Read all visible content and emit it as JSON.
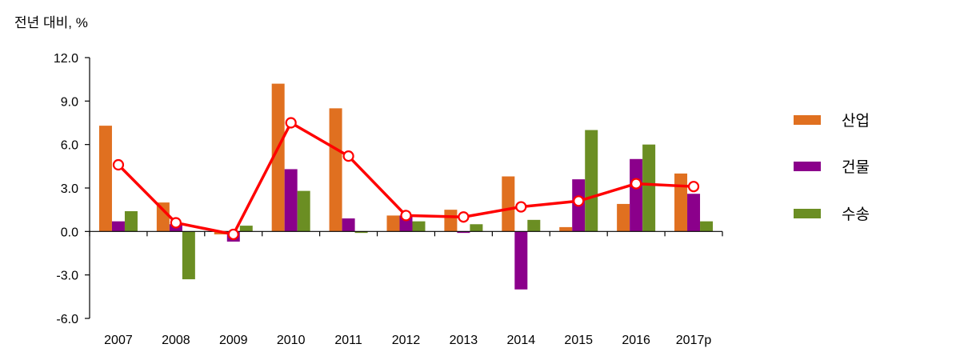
{
  "chart_data": {
    "type": "bar",
    "ylabel": "전년 대비, %",
    "ylim": [
      -6.0,
      12.0
    ],
    "yticks": [
      "12.0",
      "9.0",
      "6.0",
      "3.0",
      "0.0",
      "-3.0",
      "-6.0"
    ],
    "categories": [
      "2007",
      "2008",
      "2009",
      "2010",
      "2011",
      "2012",
      "2013",
      "2014",
      "2015",
      "2016",
      "2017p"
    ],
    "series": [
      {
        "name": "산업",
        "type": "bar",
        "color": "#E07020",
        "values": [
          7.3,
          2.0,
          -0.2,
          10.2,
          8.5,
          1.1,
          1.5,
          3.8,
          0.3,
          1.9,
          4.0
        ]
      },
      {
        "name": "건물",
        "type": "bar",
        "color": "#8B008B",
        "values": [
          0.7,
          0.5,
          -0.7,
          4.3,
          0.9,
          1.1,
          -0.1,
          -4.0,
          3.6,
          5.0,
          2.6
        ]
      },
      {
        "name": "수송",
        "type": "bar",
        "color": "#6B8E23",
        "values": [
          1.4,
          -3.3,
          0.4,
          2.8,
          -0.1,
          0.7,
          0.5,
          0.8,
          7.0,
          6.0,
          0.7
        ]
      },
      {
        "name": "",
        "type": "line",
        "color": "#FF0000",
        "values": [
          4.6,
          0.6,
          -0.2,
          7.5,
          5.2,
          1.1,
          1.0,
          1.7,
          2.1,
          3.3,
          3.1
        ]
      }
    ],
    "legend": {
      "position": "right"
    },
    "grid": false
  }
}
